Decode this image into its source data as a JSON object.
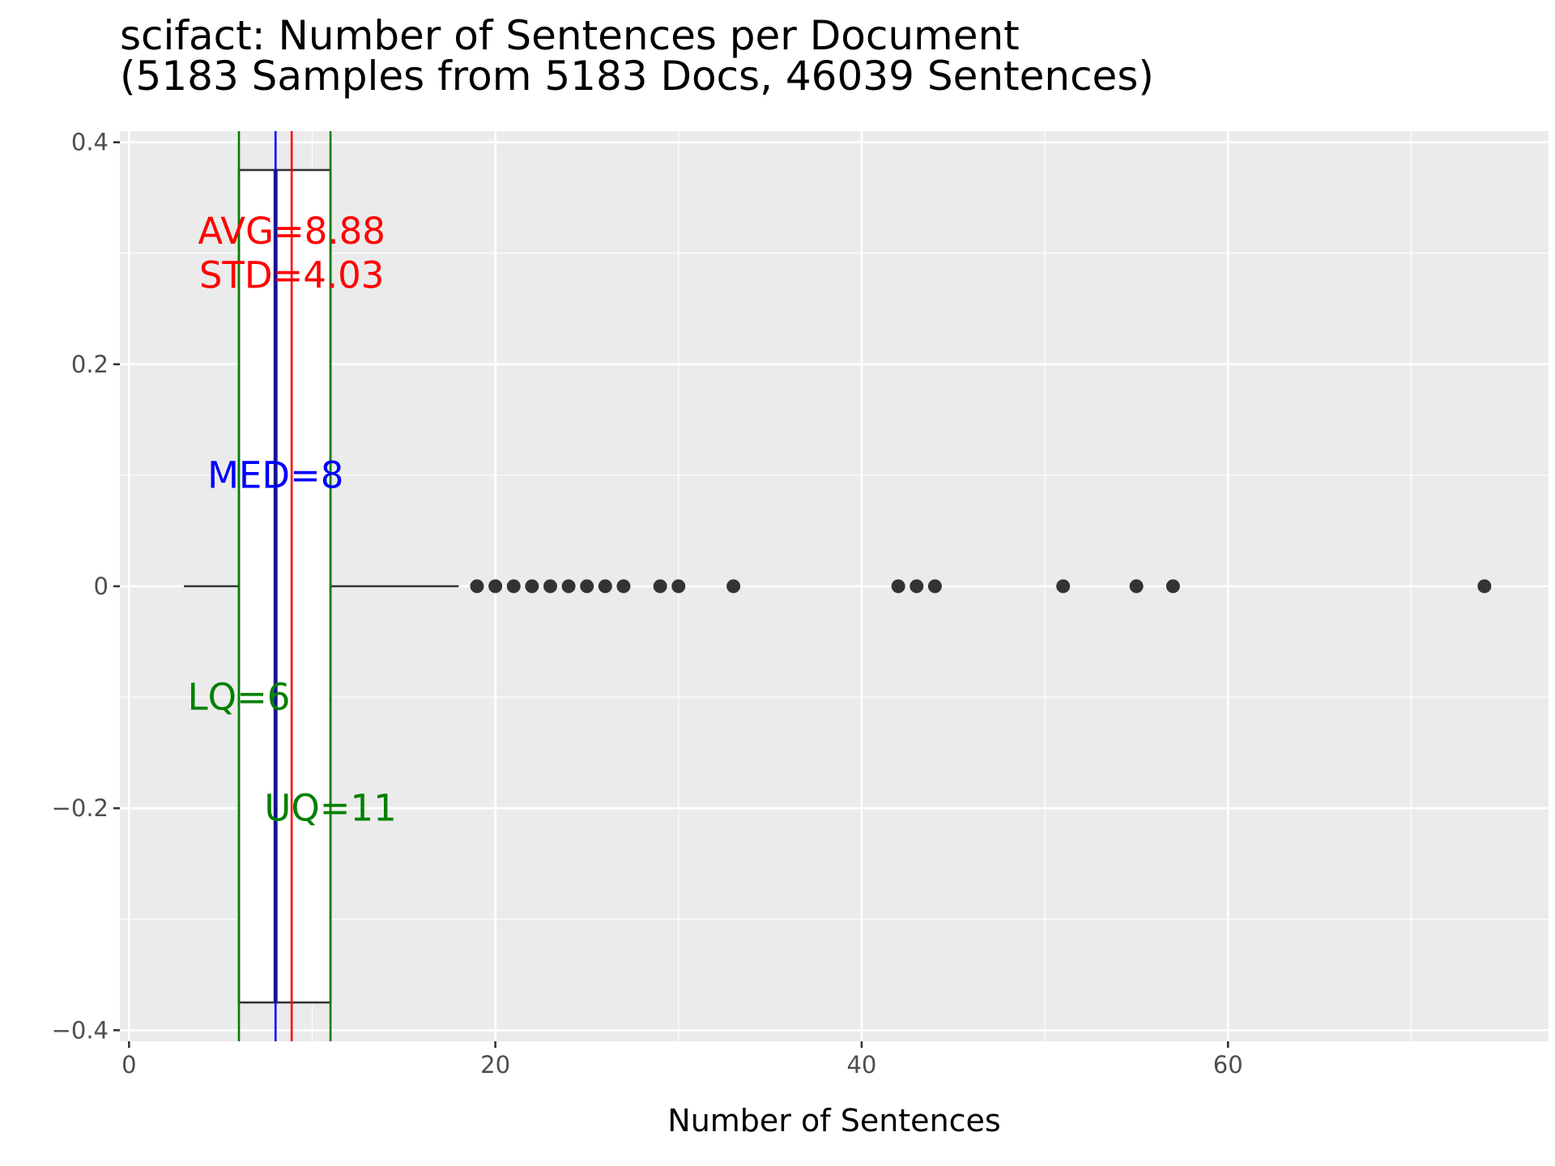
{
  "chart_data": {
    "type": "box",
    "title": "scifact: Number of Sentences per Document",
    "subtitle": "(5183 Samples from 5183 Docs, 46039 Sentences)",
    "xlabel": "Number of Sentences",
    "ylabel": "",
    "xlim": [
      -0.5,
      77.5
    ],
    "ylim": [
      -0.41,
      0.41
    ],
    "x_ticks": [
      0,
      20,
      40,
      60
    ],
    "x_tick_labels": [
      "0",
      "20",
      "40",
      "60"
    ],
    "y_ticks": [
      0.4,
      0.2,
      0,
      -0.2,
      -0.4
    ],
    "y_tick_labels": [
      "0.4",
      "0.2",
      "0",
      "−0.2",
      "−0.4"
    ],
    "grid": true,
    "box": {
      "y_center": 0,
      "y_half_height": 0.375,
      "lower_whisker": 3,
      "lower_quartile": 6,
      "median": 8,
      "upper_quartile": 11,
      "upper_whisker": 18,
      "mean": 8.88,
      "std": 4.03
    },
    "outliers": [
      19,
      20,
      21,
      22,
      23,
      24,
      25,
      26,
      27,
      29,
      30,
      33,
      42,
      43,
      44,
      51,
      55,
      57,
      74
    ],
    "reference_lines": [
      {
        "name": "LQ",
        "value": 6,
        "color": "#008000"
      },
      {
        "name": "UQ",
        "value": 11,
        "color": "#008000"
      },
      {
        "name": "MED",
        "value": 8,
        "color": "#0000ff"
      },
      {
        "name": "AVG",
        "value": 8.88,
        "color": "#ff0000"
      }
    ],
    "annotations": [
      {
        "text": "AVG=8.88",
        "x": 8.88,
        "y": 0.32,
        "color": "#ff0000"
      },
      {
        "text": "STD=4.03",
        "x": 8.88,
        "y": 0.28,
        "color": "#ff0000"
      },
      {
        "text": "MED=8",
        "x": 8,
        "y": 0.1,
        "color": "#0000ff"
      },
      {
        "text": "LQ=6",
        "x": 6,
        "y": -0.1,
        "color": "#008000"
      },
      {
        "text": "UQ=11",
        "x": 11,
        "y": -0.2,
        "color": "#008000"
      }
    ],
    "colors": {
      "panel": "#ebebeb",
      "grid": "#ffffff",
      "box_fill": "#ffffff",
      "box_line": "#333333",
      "points": "#333333"
    }
  }
}
